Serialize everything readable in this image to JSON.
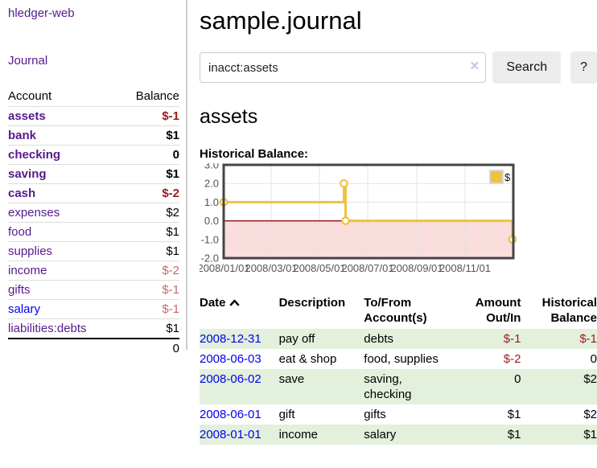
{
  "app": {
    "title": "hledger-web"
  },
  "colors": {
    "link_purple": "#551a8b",
    "link_blue": "#0000ee",
    "negative_strong": "#9b1b1b",
    "negative_muted": "#c46a6a",
    "row_green": "#e2f0dc",
    "series_yellow": "#edc240",
    "zero_line_red": "#8b1a1a",
    "negative_region_pink": "#fadddd",
    "chart_border": "#444444"
  },
  "icons": {
    "clear_search": "×",
    "sort": "chevron-up"
  },
  "sidebar": {
    "journal_label": "Journal",
    "accounts": {
      "header_account": "Account",
      "header_balance": "Balance",
      "rows": [
        {
          "name": "assets",
          "level": 0,
          "balance": "$-1",
          "emph": true
        },
        {
          "name": "bank",
          "level": 1,
          "balance": "$1",
          "emph": true
        },
        {
          "name": "checking",
          "level": 2,
          "balance": "0",
          "emph": true
        },
        {
          "name": "saving",
          "level": 2,
          "balance": "$1",
          "emph": true
        },
        {
          "name": "cash",
          "level": 1,
          "balance": "$-2",
          "emph": true
        },
        {
          "name": "expenses",
          "level": 0,
          "balance": "$2"
        },
        {
          "name": "food",
          "level": 1,
          "balance": "$1"
        },
        {
          "name": "supplies",
          "level": 1,
          "balance": "$1"
        },
        {
          "name": "income",
          "level": 0,
          "balance": "$-2",
          "muted": true
        },
        {
          "name": "gifts",
          "level": 1,
          "balance": "$-1",
          "muted": true
        },
        {
          "name": "salary",
          "level": 1,
          "balance": "$-1",
          "muted": true,
          "blue": true
        },
        {
          "name": "liabilities:debts",
          "level": 0,
          "balance": "$1"
        }
      ],
      "total": "0"
    }
  },
  "main": {
    "title": "sample.journal",
    "search": {
      "value": "inacct:assets",
      "button_label": "Search",
      "help_label": "?"
    },
    "account_heading": "assets",
    "chart_label": "Historical Balance:"
  },
  "chart_data": {
    "type": "line",
    "step": true,
    "title": "Historical Balance:",
    "series": [
      {
        "name": "$",
        "color": "#edc240",
        "points": [
          [
            "2008/01/01",
            1.0
          ],
          [
            "2008/06/01",
            2.0
          ],
          [
            "2008/06/03",
            0.0
          ],
          [
            "2008/12/31",
            -1.0
          ]
        ]
      }
    ],
    "ylim": [
      -2.0,
      3.0
    ],
    "yticks": [
      3.0,
      2.0,
      1.0,
      0.0,
      -1.0,
      -2.0
    ],
    "xticks": [
      "2008/01/01",
      "2008/03/01",
      "2008/05/01",
      "2008/07/01",
      "2008/09/01",
      "2008/11/01"
    ],
    "grid": true,
    "legend_position": "top-right",
    "negative_region_highlighted": true
  },
  "register": {
    "headers": {
      "date": "Date",
      "description": "Description",
      "accounts": "To/From Account(s)",
      "amount": "Amount Out/In",
      "balance": "Historical Balance"
    },
    "rows": [
      {
        "date": "2008-12-31",
        "description": "pay off",
        "accounts": "debts",
        "amount": "$-1",
        "balance": "$-1"
      },
      {
        "date": "2008-06-03",
        "description": "eat & shop",
        "accounts": "food, supplies",
        "amount": "$-2",
        "balance": "0"
      },
      {
        "date": "2008-06-02",
        "description": "save",
        "accounts": "saving, checking",
        "amount": "0",
        "balance": "$2"
      },
      {
        "date": "2008-06-01",
        "description": "gift",
        "accounts": "gifts",
        "amount": "$1",
        "balance": "$2"
      },
      {
        "date": "2008-01-01",
        "description": "income",
        "accounts": "salary",
        "amount": "$1",
        "balance": "$1"
      }
    ]
  }
}
